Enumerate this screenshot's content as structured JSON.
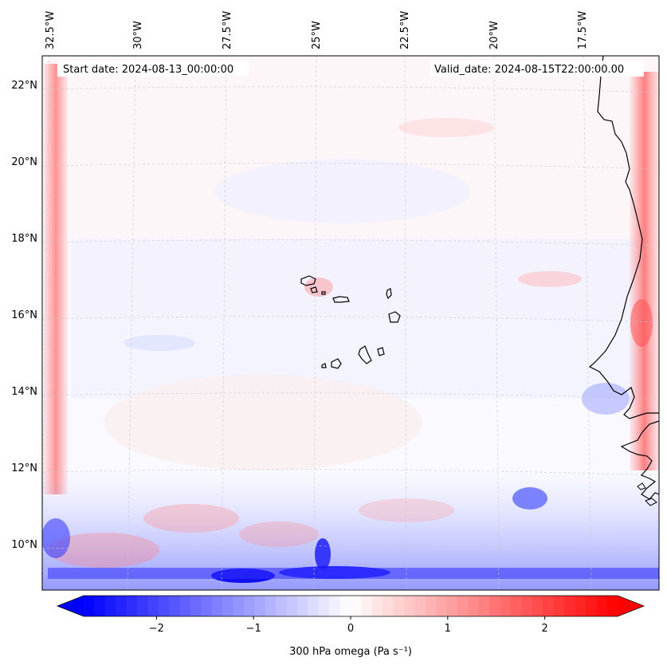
{
  "map": {
    "start_date": "Start date: 2024-08-13_00:00:00",
    "valid_date": "Valid_date: 2024-08-15T22:00:00.00",
    "lon_labels": [
      "32.5°W",
      "30°W",
      "27.5°W",
      "25°W",
      "22.5°W",
      "20°W",
      "17.5°W"
    ],
    "lat_labels": [
      "22°N",
      "20°N",
      "18°N",
      "16°N",
      "14°N",
      "12°N",
      "10°N"
    ],
    "region": "Cabo Verde / West African coast",
    "colors": {
      "negative": "#0000ff",
      "positive": "#ff0000",
      "neutral": "#ffffff",
      "coast": "#000000"
    }
  },
  "colorbar": {
    "label": "300 hPa omega (Pa s⁻¹)",
    "ticks": [
      "−2",
      "−1",
      "0",
      "1",
      "2"
    ],
    "tick_values": [
      -2,
      -1,
      0,
      1,
      2
    ],
    "range": [
      -2.75,
      2.75
    ],
    "colormap": "bwr"
  }
}
